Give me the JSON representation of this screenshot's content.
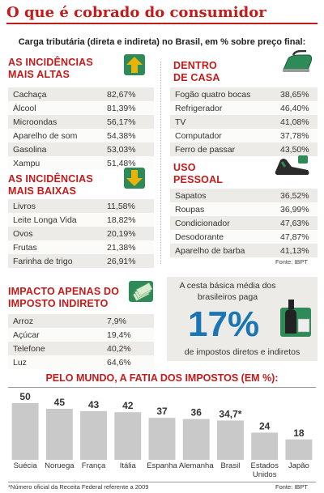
{
  "title": "O que é cobrado do consumidor",
  "subtitle": "Carga tributária (direta e indireta) no Brasil, em % sobre preço final:",
  "altas": {
    "title_line1": "AS INCIDÊNCIAS",
    "title_line2": "MAIS ALTAS",
    "rows": [
      {
        "label": "Cachaça",
        "value": "82,67%"
      },
      {
        "label": "Álcool",
        "value": "81,39%"
      },
      {
        "label": "Microondas",
        "value": "56,17%"
      },
      {
        "label": "Aparelho de som",
        "value": "54,38%"
      },
      {
        "label": "Gasolina",
        "value": "53,03%"
      },
      {
        "label": "Xampu",
        "value": "51,48%"
      }
    ]
  },
  "baixas": {
    "title_line1": "AS INCIDÊNCIAS",
    "title_line2": "MAIS BAIXAS",
    "rows": [
      {
        "label": "Livros",
        "value": "11,58%"
      },
      {
        "label": "Leite Longa Vida",
        "value": "18,82%"
      },
      {
        "label": "Ovos",
        "value": "20,19%"
      },
      {
        "label": "Frutas",
        "value": "21,38%"
      },
      {
        "label": "Farinha de trigo",
        "value": "26,91%"
      }
    ]
  },
  "casa": {
    "title_line1": "DENTRO",
    "title_line2": "DE CASA",
    "rows": [
      {
        "label": "Fogão quatro bocas",
        "value": "38,65%"
      },
      {
        "label": "Refrigerador",
        "value": "46,40%"
      },
      {
        "label": "TV",
        "value": "41,08%"
      },
      {
        "label": "Computador",
        "value": "37,78%"
      },
      {
        "label": "Ferro de passar",
        "value": "43,50%"
      }
    ]
  },
  "pessoal": {
    "title_line1": "USO",
    "title_line2": "PESSOAL",
    "rows": [
      {
        "label": "Sapatos",
        "value": "36,52%"
      },
      {
        "label": "Roupas",
        "value": "36,99%"
      },
      {
        "label": "Condicionador",
        "value": "47,63%"
      },
      {
        "label": "Desodorante",
        "value": "47,87%"
      },
      {
        "label": "Aparelho de barba",
        "value": "41,13%"
      }
    ],
    "source": "Fonte: IBPT"
  },
  "indireto": {
    "title_line1": "IMPACTO APENAS DO",
    "title_line2": "IMPOSTO INDIRETO",
    "rows": [
      {
        "label": "Arroz",
        "value": "7,9%"
      },
      {
        "label": "Açúcar",
        "value": "19,4%"
      },
      {
        "label": "Telefone",
        "value": "40,2%"
      },
      {
        "label": "Luz",
        "value": "64,6%"
      }
    ]
  },
  "basket": {
    "line1": "A cesta básica média dos",
    "line2": "brasileiros paga",
    "big": "17%",
    "line3": "de impostos diretos e indiretos"
  },
  "chart_data": {
    "type": "bar",
    "title": "PELO MUNDO, A FATIA DOS IMPOSTOS (EM %):",
    "categories": [
      "Suécia",
      "Noruega",
      "França",
      "Itália",
      "Espanha",
      "Alemanha",
      "Brasil",
      "Estados Unidos",
      "Japão"
    ],
    "values": [
      50,
      45,
      43,
      42,
      37,
      36,
      34.7,
      24,
      18
    ],
    "value_labels": [
      "50",
      "45",
      "43",
      "42",
      "37",
      "36",
      "34,7*",
      "24",
      "18"
    ],
    "ylim": [
      0,
      50
    ],
    "color": "#c9c9c9"
  },
  "footnote": "*Número oficial da Receita Federal referente a 2009",
  "source_bottom": "Fonte: IBPT",
  "colors": {
    "accent_red": "#c41a1a",
    "accent_blue": "#1a75b5",
    "arrow_yellow": "#e8b40a",
    "icon_green": "#2e8b57"
  },
  "icons": [
    "arrow-up-icon",
    "arrow-down-icon",
    "iron-icon",
    "shoe-icon",
    "banknotes-icon",
    "bottle-icon"
  ]
}
